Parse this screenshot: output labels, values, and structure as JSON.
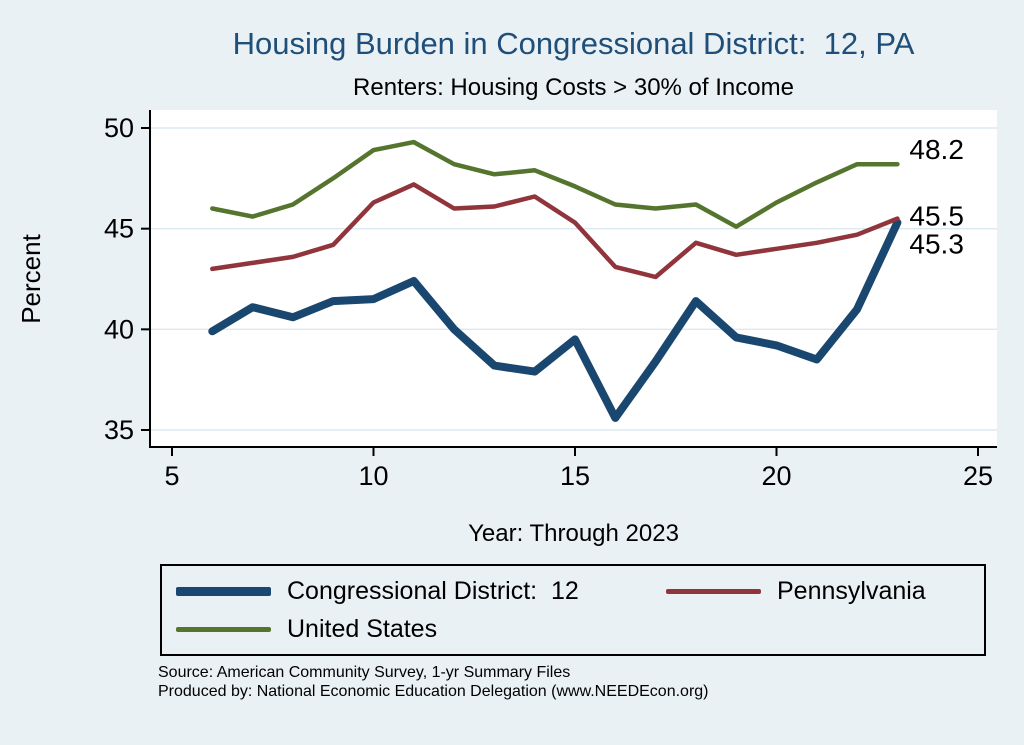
{
  "title": "Housing Burden in Congressional District:  12, PA",
  "subtitle": "Renters: Housing Costs > 30% of Income",
  "xlabel": "Year: Through 2023",
  "ylabel": "Percent",
  "source_line1": "Source: American Community Survey, 1-yr Summary Files",
  "source_line2": "Produced by: National Economic Education Delegation (www.NEEDEcon.org)",
  "colors": {
    "background": "#eaf1f5",
    "plot_background": "#ffffff",
    "gridline": "#dde9f1",
    "axis": "#000000",
    "title": "#1f4e79",
    "cd12": "#1a476f",
    "pennsylvania": "#90353b",
    "united_states": "#55752f"
  },
  "chart_data": {
    "type": "line",
    "x": [
      6,
      7,
      8,
      9,
      10,
      11,
      12,
      13,
      14,
      15,
      16,
      17,
      18,
      19,
      20,
      21,
      22,
      23
    ],
    "series": [
      {
        "name": "Congressional District:  12",
        "color": "#1a476f",
        "width": 8,
        "values": [
          39.9,
          41.1,
          40.6,
          41.4,
          41.5,
          42.4,
          40.0,
          38.2,
          37.9,
          39.5,
          35.6,
          38.4,
          41.4,
          39.6,
          39.2,
          38.5,
          41.0,
          45.3
        ],
        "end_label": "45.3",
        "end_label_dy": 22
      },
      {
        "name": "Pennsylvania",
        "color": "#90353b",
        "width": 4.5,
        "values": [
          43.0,
          43.3,
          43.6,
          44.2,
          46.3,
          47.2,
          46.0,
          46.1,
          46.6,
          45.3,
          43.1,
          42.6,
          44.3,
          43.7,
          44.0,
          44.3,
          44.7,
          45.5
        ],
        "end_label": "45.5",
        "end_label_dy": -2
      },
      {
        "name": "United States",
        "color": "#55752f",
        "width": 4.5,
        "values": [
          46.0,
          45.6,
          46.2,
          47.5,
          48.9,
          49.3,
          48.2,
          47.7,
          47.9,
          47.1,
          46.2,
          46.0,
          46.2,
          45.1,
          46.3,
          47.3,
          48.2,
          48.2
        ],
        "end_label": "48.2",
        "end_label_dy": -14
      }
    ],
    "title": "Housing Burden in Congressional District:  12, PA",
    "subtitle": "Renters: Housing Costs > 30% of Income",
    "xlabel": "Year: Through 2023",
    "ylabel": "Percent",
    "xlim": [
      5,
      25
    ],
    "ylim": [
      35,
      50
    ],
    "xticks": [
      5,
      10,
      15,
      20,
      25
    ],
    "yticks": [
      35,
      40,
      45,
      50
    ],
    "grid": "horizontal",
    "legend_position": "bottom"
  },
  "legend": {
    "row1_item1": "Congressional District:  12",
    "row1_item2": "Pennsylvania",
    "row2_item1": "United States"
  }
}
